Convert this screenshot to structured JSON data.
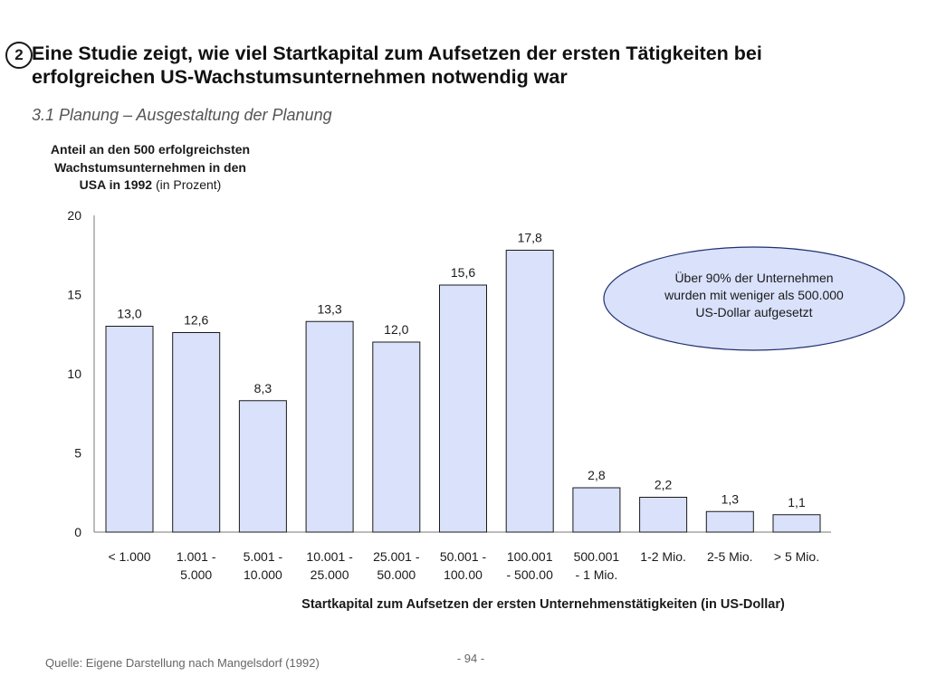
{
  "slide": {
    "number": "2",
    "title_line1": "Eine Studie zeigt, wie viel Startkapital zum Aufsetzen der ersten Tätigkeiten bei",
    "title_line2": "erfolgreichen US-Wachstumsunternehmen notwendig war",
    "subtitle": "3.1 Planung – Ausgestaltung der Planung",
    "source": "Quelle: Eigene Darstellung nach Mangelsdorf (1992)",
    "page": "- 94 -",
    "callout": {
      "line1": "Über 90% der Unternehmen",
      "line2": "wurden mit weniger als 500.000",
      "line3": "US-Dollar aufgesetzt"
    }
  },
  "chart_data": {
    "type": "bar",
    "ylabel_bold_line1": "Anteil an den  500 erfolgreichsten",
    "ylabel_bold_line2": "Wachstumsunternehmen in den",
    "ylabel_bold_line3": "USA in 1992",
    "ylabel_unit": " (in Prozent)",
    "xlabel": "Startkapital zum Aufsetzen der ersten  Unternehmenstätigkeiten  (in US-Dollar)",
    "ylim": [
      0,
      20
    ],
    "yticks": [
      "0",
      "5",
      "10",
      "15",
      "20"
    ],
    "categories": [
      [
        "< 1.000"
      ],
      [
        "1.001 -",
        "5.000"
      ],
      [
        "5.001 -",
        "10.000"
      ],
      [
        "10.001 -",
        "25.000"
      ],
      [
        "25.001 -",
        "50.000"
      ],
      [
        "50.001 -",
        "100.00"
      ],
      [
        "100.001",
        "- 500.00"
      ],
      [
        "500.001",
        "- 1 Mio."
      ],
      [
        "1-2 Mio."
      ],
      [
        "2-5 Mio."
      ],
      [
        "> 5 Mio."
      ]
    ],
    "values": [
      13.0,
      12.6,
      8.3,
      13.3,
      12.0,
      15.6,
      17.8,
      2.8,
      2.2,
      1.3,
      1.1
    ],
    "value_labels": [
      "13,0",
      "12,6",
      "8,3",
      "13,3",
      "12,0",
      "15,6",
      "17,8",
      "2,8",
      "2,2",
      "1,3",
      "1,1"
    ],
    "bar_color": "#d9e1fb",
    "bar_stroke": "#1a1a1a",
    "callout_fill": "#d9e1fb",
    "callout_stroke": "#1f2f6e",
    "grid": false,
    "legend": "none"
  }
}
